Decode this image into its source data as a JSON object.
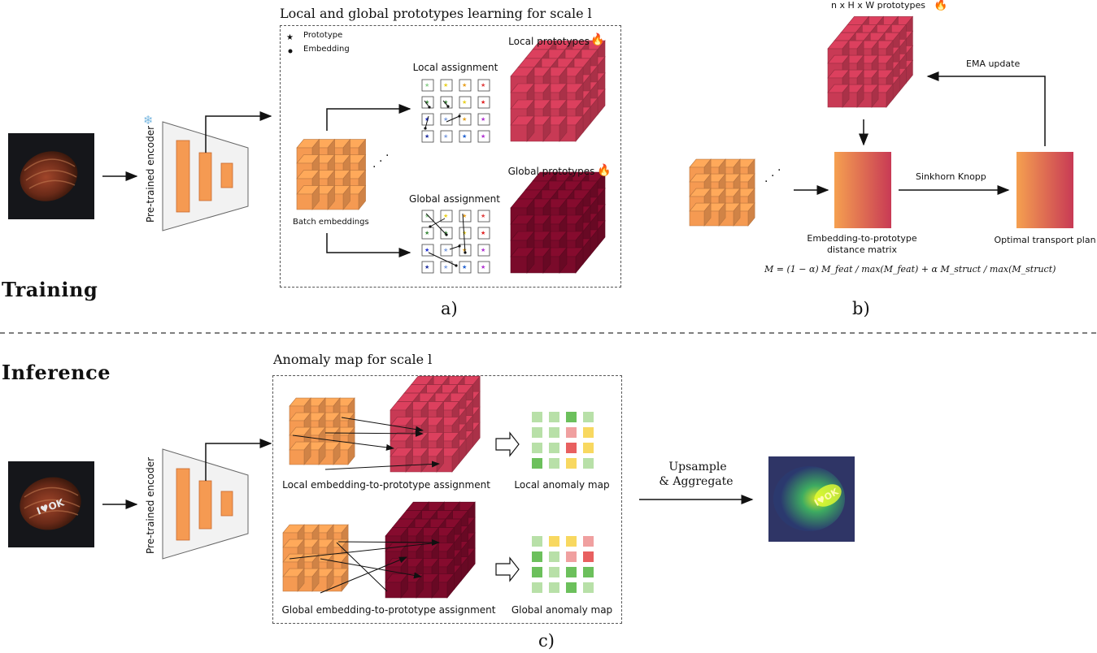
{
  "section_training": "Training",
  "section_inference": "Inference",
  "panel_a": {
    "title": "Local and global prototypes learning for scale l",
    "legend_prototype": "Prototype",
    "legend_embedding": "Embedding",
    "local_assignment": "Local assignment",
    "global_assignment": "Global assignment",
    "local_prototypes": "Local prototypes",
    "global_prototypes": "Global prototypes",
    "batch_embeddings": "Batch embeddings",
    "caption": "a)"
  },
  "encoder_label": "Pre-trained encoder",
  "panel_b": {
    "prototypes": "n x H x W prototypes",
    "ema_update": "EMA update",
    "sinkhorn": "Sinkhorn Knopp",
    "distance_matrix_line1": "Embedding-to-prototype",
    "distance_matrix_line2": "distance matrix",
    "transport_plan": "Optimal transport plan",
    "formula": "M = (1 − α) M_feat / max(M_feat) + α M_struct / max(M_struct)",
    "caption": "b)"
  },
  "panel_c": {
    "title": "Anomaly map for scale l",
    "local_assignment": "Local embedding-to-prototype assignment",
    "global_assignment": "Global embedding-to-prototype assignment",
    "local_map": "Local anomaly map",
    "global_map": "Global anomaly map",
    "upsample_line1": "Upsample",
    "upsample_line2": "& Aggregate",
    "caption": "c)"
  },
  "colors": {
    "orange": "#f59a52",
    "local_red": "#c83a55",
    "global_red": "#7a0a2a",
    "gradient_start": "#f5a050",
    "gradient_end": "#c83a55"
  },
  "icons": [
    "snowflake-icon",
    "fire-icon",
    "star-icon",
    "dot-icon"
  ]
}
